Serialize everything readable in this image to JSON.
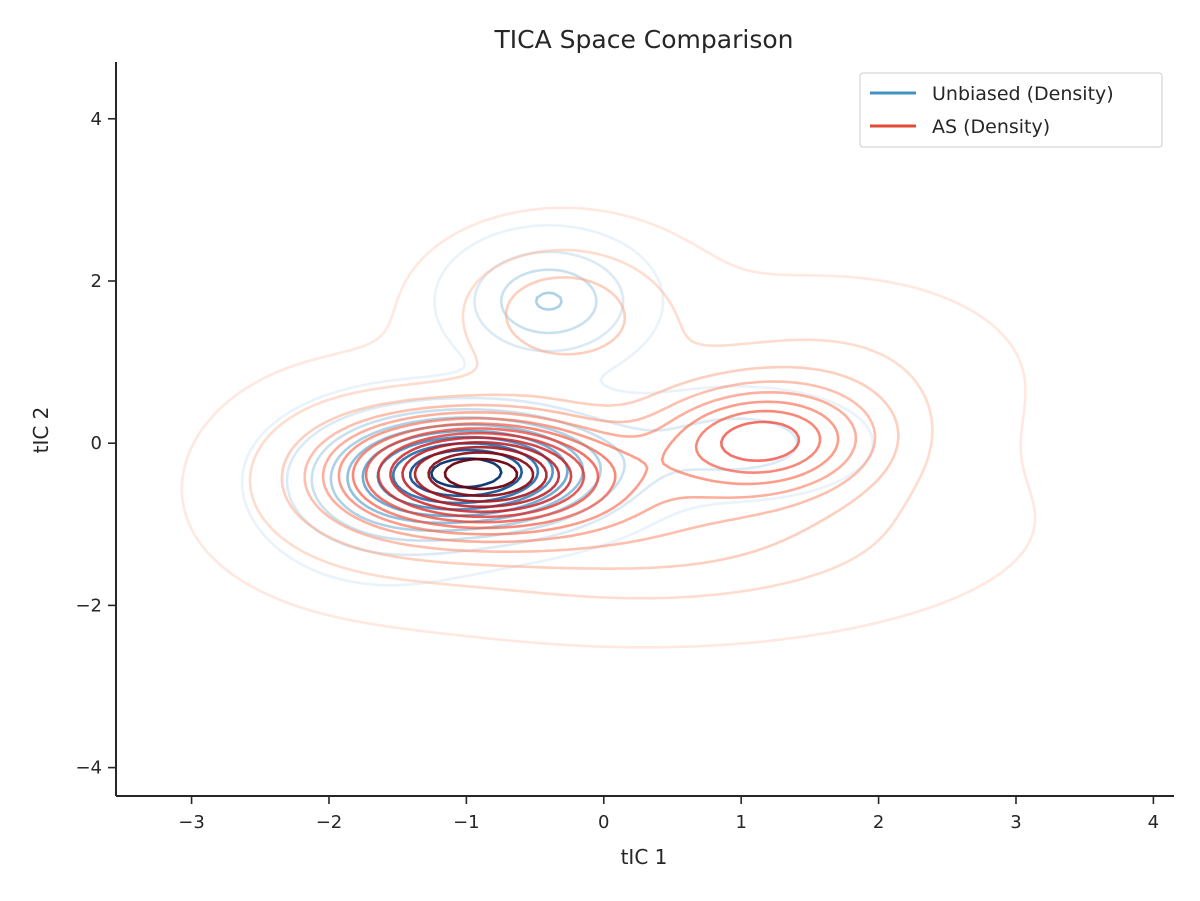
{
  "chart_data": {
    "type": "contour",
    "title": "TICA Space Comparison",
    "xlabel": "tIC 1",
    "ylabel": "tIC 2",
    "xlim": [
      -3.55,
      4.15
    ],
    "ylim": [
      -4.35,
      4.7
    ],
    "xticks": [
      -3,
      -2,
      -1,
      0,
      1,
      2,
      3,
      4
    ],
    "yticks": [
      -4,
      -2,
      0,
      2,
      4
    ],
    "xtick_labels": [
      "−3",
      "−2",
      "−1",
      "0",
      "1",
      "2",
      "3",
      "4"
    ],
    "ytick_labels": [
      "−4",
      "−2",
      "0",
      "2",
      "4"
    ],
    "grid": false,
    "legend_position": "top-right",
    "series": [
      {
        "name": "Unbiased (Density)",
        "legend_color": "#4292c6",
        "colormap": "Blues",
        "components": [
          {
            "cx": -0.9,
            "cy": -0.35,
            "sx": 0.6,
            "sy": 0.45,
            "w": 1.0
          },
          {
            "cx": -0.4,
            "cy": 1.75,
            "sx": 0.4,
            "sy": 0.45,
            "w": 0.38
          },
          {
            "cx": 1.0,
            "cy": 0.0,
            "sx": 0.55,
            "sy": 0.4,
            "w": 0.2
          },
          {
            "cx": -1.6,
            "cy": -0.6,
            "sx": 0.5,
            "sy": 0.6,
            "w": 0.25
          }
        ],
        "levels": 10,
        "min_fraction": 0.04
      },
      {
        "name": "AS (Density)",
        "legend_color": "#e34a33",
        "colormap": "Reds",
        "components": [
          {
            "cx": -0.85,
            "cy": -0.35,
            "sx": 0.6,
            "sy": 0.45,
            "w": 1.0
          },
          {
            "cx": 1.15,
            "cy": 0.05,
            "sx": 0.55,
            "sy": 0.45,
            "w": 0.55
          },
          {
            "cx": -0.3,
            "cy": 1.6,
            "sx": 0.55,
            "sy": 0.6,
            "w": 0.25
          },
          {
            "cx": 0.3,
            "cy": -1.0,
            "sx": 1.3,
            "sy": 0.7,
            "w": 0.25
          },
          {
            "cx": -1.7,
            "cy": -0.4,
            "sx": 0.6,
            "sy": 0.7,
            "w": 0.22
          },
          {
            "cx": 1.6,
            "cy": 0.8,
            "sx": 0.8,
            "sy": 0.7,
            "w": 0.12
          }
        ],
        "levels": 14,
        "min_fraction": 0.02
      }
    ]
  }
}
